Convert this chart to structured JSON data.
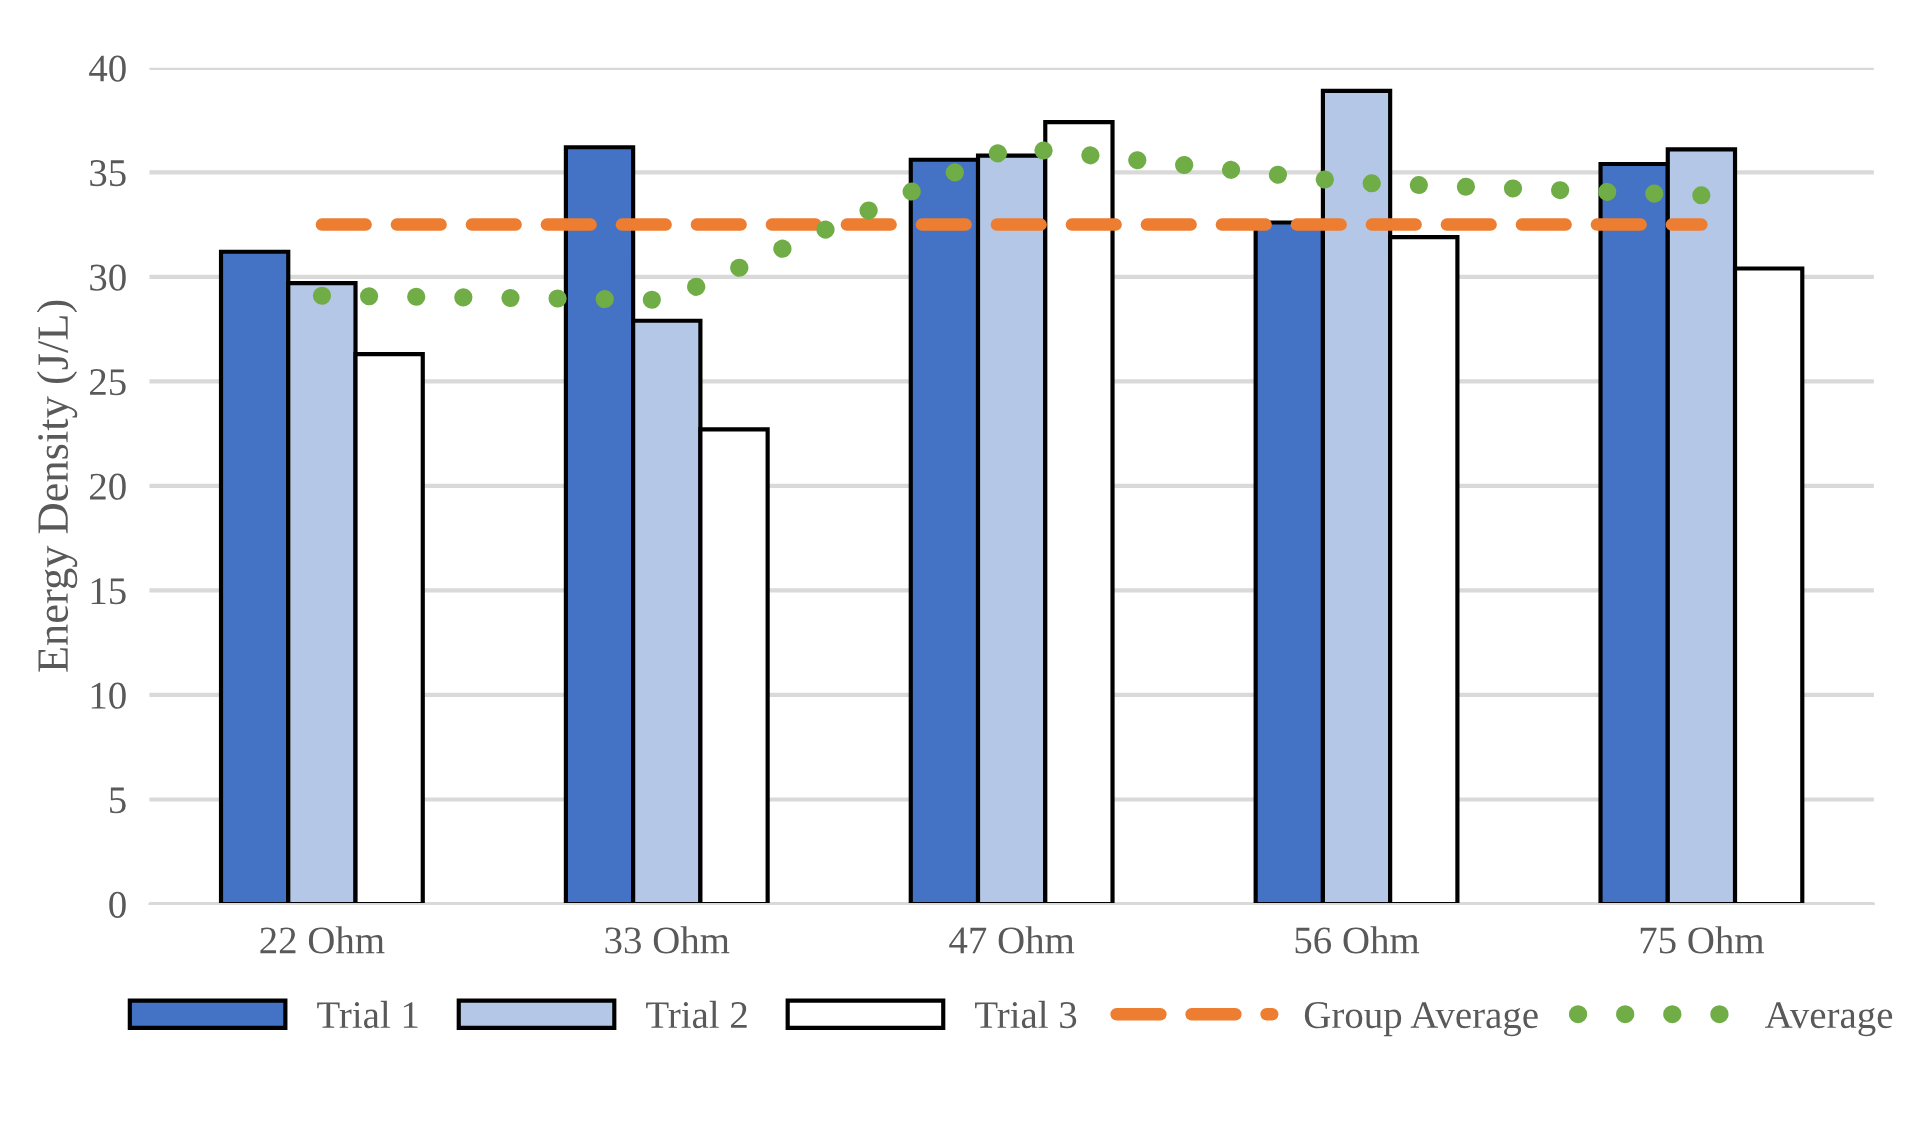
{
  "chart_data": {
    "type": "bar",
    "ylabel": "Energy Density (J/L)",
    "categories": [
      "22 Ohm",
      "33 Ohm",
      "47 Ohm",
      "56 Ohm",
      "75 Ohm"
    ],
    "series": [
      {
        "name": "Trial 1",
        "color": "#4472c4",
        "values": [
          31.2,
          36.2,
          35.6,
          32.6,
          35.4
        ]
      },
      {
        "name": "Trial 2",
        "color": "#b4c7e7",
        "values": [
          29.7,
          27.9,
          35.8,
          38.9,
          36.1
        ]
      },
      {
        "name": "Trial 3",
        "color": "#ffffff",
        "values": [
          26.3,
          22.7,
          37.4,
          31.9,
          30.4
        ]
      },
      {
        "name": "Group Average",
        "type": "line",
        "line_style": "dashed",
        "color": "#ed7d31",
        "values": [
          32.5,
          32.5,
          32.5,
          32.5,
          32.5
        ]
      },
      {
        "name": "Average",
        "type": "line",
        "line_style": "dotted",
        "color": "#70ad47",
        "values": [
          29.1,
          28.9,
          36.2,
          34.5,
          33.9
        ]
      }
    ],
    "ylim": [
      0,
      40
    ],
    "yticks": [
      0,
      5,
      10,
      15,
      20,
      25,
      30,
      35,
      40
    ],
    "grid": "y",
    "legend": "bottom"
  }
}
